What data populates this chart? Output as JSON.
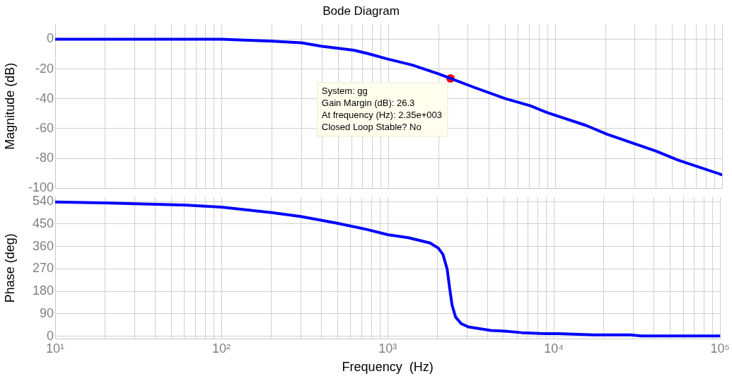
{
  "chart_data": [
    {
      "type": "line",
      "title": "Bode Diagram",
      "ylabel": "Magnitude (dB)",
      "xlim": [
        10,
        100000
      ],
      "ylim": [
        -100,
        10
      ],
      "yticks": [
        -100,
        -80,
        -60,
        -40,
        -20,
        0
      ],
      "xticks": [
        {
          "value": 10,
          "label": null
        },
        {
          "value": 20,
          "label": null
        },
        {
          "value": 30,
          "label": null
        },
        {
          "value": 40,
          "label": null
        },
        {
          "value": 50,
          "label": null
        },
        {
          "value": 60,
          "label": null
        },
        {
          "value": 70,
          "label": null
        },
        {
          "value": 80,
          "label": null
        },
        {
          "value": 90,
          "label": null
        },
        {
          "value": 100,
          "label": null
        },
        {
          "value": 200,
          "label": null
        },
        {
          "value": 300,
          "label": null
        },
        {
          "value": 400,
          "label": null
        },
        {
          "value": 500,
          "label": null
        },
        {
          "value": 600,
          "label": null
        },
        {
          "value": 700,
          "label": null
        },
        {
          "value": 800,
          "label": null
        },
        {
          "value": 900,
          "label": null
        },
        {
          "value": 1000,
          "label": null
        },
        {
          "value": 2000,
          "label": null
        },
        {
          "value": 3000,
          "label": null
        },
        {
          "value": 4000,
          "label": null
        },
        {
          "value": 5000,
          "label": null
        },
        {
          "value": 6000,
          "label": null
        },
        {
          "value": 7000,
          "label": null
        },
        {
          "value": 8000,
          "label": null
        },
        {
          "value": 9000,
          "label": null
        },
        {
          "value": 10000,
          "label": null
        },
        {
          "value": 20000,
          "label": null
        },
        {
          "value": 30000,
          "label": null
        },
        {
          "value": 40000,
          "label": null
        },
        {
          "value": 50000,
          "label": null
        },
        {
          "value": 60000,
          "label": null
        },
        {
          "value": 70000,
          "label": null
        },
        {
          "value": 80000,
          "label": null
        },
        {
          "value": 90000,
          "label": null
        },
        {
          "value": 100000,
          "label": null
        }
      ],
      "log": "x",
      "grid": true,
      "legend": false,
      "tick_labels": "y",
      "line_style": "solid",
      "series": [
        {
          "type": "line",
          "color": "#0000ff",
          "marker": "none",
          "x": [
            10,
            50,
            100,
            200,
            299,
            398,
            617,
            750,
            1000,
            1380,
            2000,
            2350,
            3270,
            4990,
            7080,
            8960,
            15300,
            20400,
            40000,
            54600,
            100000
          ],
          "values": [
            0,
            0,
            0,
            -1.3,
            -2.4,
            -4.8,
            -7.4,
            -9.6,
            -13.5,
            -17.3,
            -23.3,
            -26.3,
            -32.4,
            -39.8,
            -44.7,
            -49.3,
            -57.9,
            -63.8,
            -75.1,
            -81.2,
            -91.0
          ]
        },
        {
          "type": "scatter",
          "color": "#ff0000",
          "marker": "circle",
          "x": [
            2350
          ],
          "values": [
            -26.3
          ]
        }
      ],
      "annotations": [
        {
          "text": "System: gg\nGain Margin (dB): 26.3\nAt frequency (Hz): 2.35e+003\nClosed Loop Stable? No",
          "x": 2350,
          "y": -26.3
        }
      ]
    },
    {
      "type": "line",
      "ylabel": "Phase (deg)",
      "xlabel": "Frequency  (Hz)",
      "xlim": [
        10,
        100000
      ],
      "ylim": [
        -12,
        558
      ],
      "yticks": [
        0,
        90,
        180,
        270,
        360,
        450,
        540
      ],
      "xticks": [
        {
          "value": 10,
          "label": "10¹"
        },
        {
          "value": 20,
          "label": null
        },
        {
          "value": 30,
          "label": null
        },
        {
          "value": 40,
          "label": null
        },
        {
          "value": 50,
          "label": null
        },
        {
          "value": 60,
          "label": null
        },
        {
          "value": 70,
          "label": null
        },
        {
          "value": 80,
          "label": null
        },
        {
          "value": 90,
          "label": null
        },
        {
          "value": 100,
          "label": "10²"
        },
        {
          "value": 200,
          "label": null
        },
        {
          "value": 300,
          "label": null
        },
        {
          "value": 400,
          "label": null
        },
        {
          "value": 500,
          "label": null
        },
        {
          "value": 600,
          "label": null
        },
        {
          "value": 700,
          "label": null
        },
        {
          "value": 800,
          "label": null
        },
        {
          "value": 900,
          "label": null
        },
        {
          "value": 1000,
          "label": "10³"
        },
        {
          "value": 2000,
          "label": null
        },
        {
          "value": 3000,
          "label": null
        },
        {
          "value": 4000,
          "label": null
        },
        {
          "value": 5000,
          "label": null
        },
        {
          "value": 6000,
          "label": null
        },
        {
          "value": 7000,
          "label": null
        },
        {
          "value": 8000,
          "label": null
        },
        {
          "value": 9000,
          "label": null
        },
        {
          "value": 10000,
          "label": "10⁴"
        },
        {
          "value": 20000,
          "label": null
        },
        {
          "value": 30000,
          "label": null
        },
        {
          "value": 40000,
          "label": null
        },
        {
          "value": 50000,
          "label": null
        },
        {
          "value": 60000,
          "label": null
        },
        {
          "value": 70000,
          "label": null
        },
        {
          "value": 80000,
          "label": null
        },
        {
          "value": 90000,
          "label": null
        },
        {
          "value": 100000,
          "label": "10⁵"
        }
      ],
      "log": "x",
      "grid": true,
      "legend": false,
      "line_style": "solid",
      "series": [
        {
          "type": "line",
          "color": "#0000ff",
          "marker": "none",
          "x": [
            10,
            19.5,
            59,
            100,
            200,
            300,
            490,
            750,
            1000,
            1330,
            1800,
            2020,
            2150,
            2280,
            2360,
            2440,
            2560,
            2770,
            3060,
            4180,
            5100,
            6410,
            8960,
            10600,
            17400,
            28600,
            33800,
            100000
          ],
          "values": [
            538,
            535,
            526,
            518,
            496,
            480,
            454,
            428,
            407,
            395,
            374,
            353,
            328,
            269,
            192,
            125,
            77,
            50,
            37,
            23,
            20,
            14,
            10,
            10,
            5,
            5,
            1,
            1
          ]
        }
      ]
    }
  ]
}
